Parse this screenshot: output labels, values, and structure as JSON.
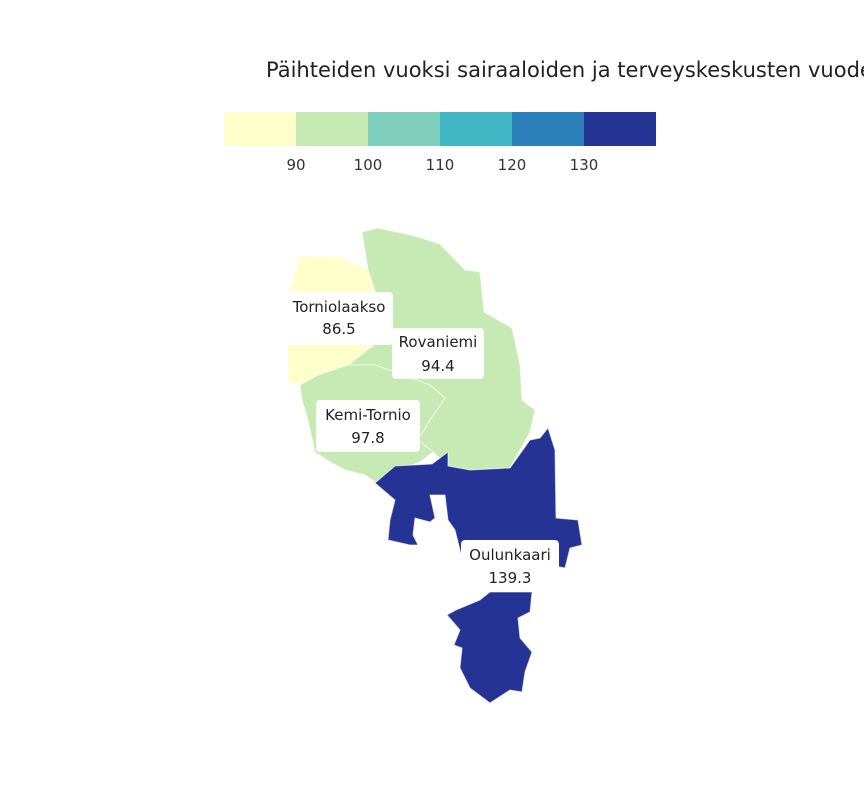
{
  "title": "Päihteiden vuoksi sairaaloiden ja terveyskeskusten vuodeosastoilla hoidetut potilaat",
  "legend": {
    "colors": [
      "#ffffcc",
      "#c7e9b4",
      "#7fcdbb",
      "#41b6c4",
      "#2c7fb8",
      "#253494"
    ],
    "ticks": [
      "90",
      "100",
      "110",
      "120",
      "130"
    ]
  },
  "regions": [
    {
      "name": "Torniolaakso",
      "value": "86.5",
      "color": "#ffffcc"
    },
    {
      "name": "Rovaniemi",
      "value": "94.4",
      "color": "#c7e9b4"
    },
    {
      "name": "Kemi-Tornio",
      "value": "97.8",
      "color": "#c7e9b4"
    },
    {
      "name": "Oulunkaari",
      "value": "139.3",
      "color": "#253494"
    }
  ]
}
